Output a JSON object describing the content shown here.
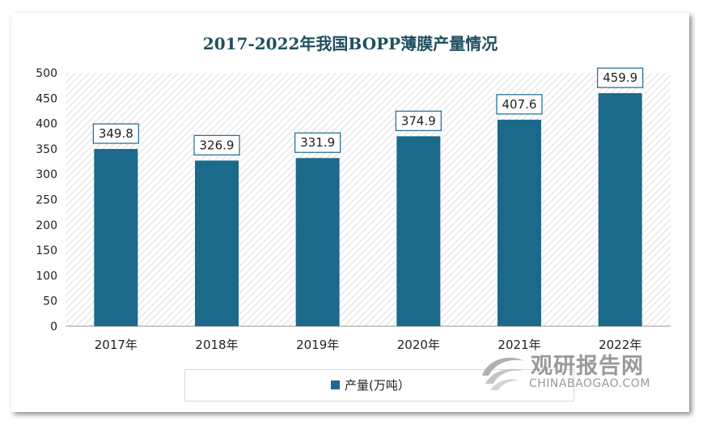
{
  "chart_data": {
    "type": "bar",
    "title": "2017-2022年我国BOPP薄膜产量情况",
    "categories": [
      "2017年",
      "2018年",
      "2019年",
      "2020年",
      "2021年",
      "2022年"
    ],
    "series": [
      {
        "name": "产量(万吨）",
        "values": [
          349.8,
          326.9,
          331.9,
          374.9,
          407.6,
          459.9
        ]
      }
    ],
    "data_labels": [
      "349.8",
      "326.9",
      "331.9",
      "374.9",
      "407.6",
      "459.9"
    ],
    "ylim": [
      0,
      500
    ],
    "yticks": [
      "0",
      "50",
      "100",
      "150",
      "200",
      "250",
      "300",
      "350",
      "400",
      "450",
      "500"
    ],
    "grid": false,
    "legend": "bottom",
    "colors": {
      "bar": "#1b6a8c",
      "title": "#1f4e5f",
      "label_border": "#1b6a8c"
    }
  },
  "watermark": {
    "name_cn": "观研报告网",
    "name_en": "CHINABAOGAO.COM"
  }
}
